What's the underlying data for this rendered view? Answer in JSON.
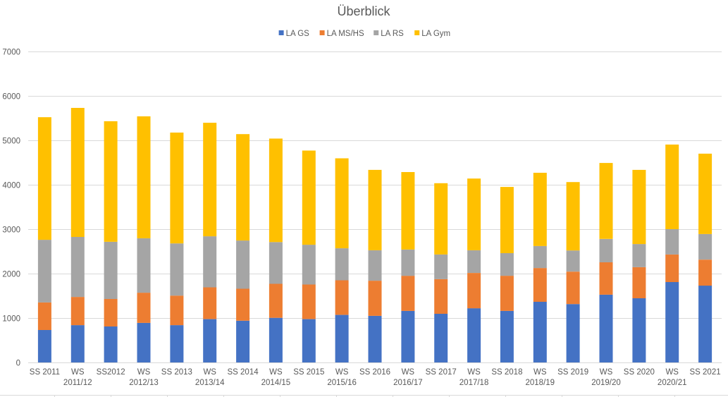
{
  "chart_data": {
    "type": "bar",
    "stacked": true,
    "title": "Überblick",
    "xlabel": "",
    "ylabel": "",
    "ylim": [
      0,
      7000
    ],
    "yticks": [
      0,
      1000,
      2000,
      3000,
      4000,
      5000,
      6000,
      7000
    ],
    "grid": true,
    "legend_position": "top",
    "categories": [
      "SS 2011",
      "WS 2011/12",
      "SS2012",
      "WS 2012/13",
      "SS 2013",
      "WS 2013/14",
      "SS 2014",
      "WS 2014/15",
      "SS 2015",
      "WS 2015/16",
      "SS 2016",
      "WS 2016/17",
      "SS 2017",
      "WS 2017/18",
      "SS 2018",
      "WS 2018/19",
      "SS 2019",
      "WS 2019/20",
      "SS 2020",
      "WS 2020/21",
      "SS 2021"
    ],
    "series": [
      {
        "name": "LA GS",
        "color": "#4472c4",
        "values": [
          730,
          840,
          810,
          890,
          840,
          975,
          940,
          1005,
          975,
          1070,
          1050,
          1160,
          1095,
          1220,
          1160,
          1365,
          1315,
          1525,
          1445,
          1810,
          1730
        ]
      },
      {
        "name": "LA MS/HS",
        "color": "#ed7d31",
        "values": [
          620,
          635,
          620,
          680,
          665,
          715,
          720,
          765,
          780,
          780,
          790,
          790,
          780,
          795,
          790,
          760,
          730,
          730,
          700,
          620,
          585
        ]
      },
      {
        "name": "LA RS",
        "color": "#a5a5a5",
        "values": [
          1410,
          1350,
          1285,
          1225,
          1175,
          1150,
          1085,
          940,
          895,
          720,
          685,
          590,
          555,
          510,
          510,
          495,
          475,
          525,
          520,
          570,
          575
        ]
      },
      {
        "name": "LA Gym",
        "color": "#ffc000",
        "values": [
          2760,
          2905,
          2715,
          2745,
          2495,
          2555,
          2395,
          2330,
          2120,
          2025,
          1810,
          1745,
          1605,
          1615,
          1490,
          1650,
          1540,
          1710,
          1670,
          1905,
          1810
        ]
      }
    ]
  }
}
